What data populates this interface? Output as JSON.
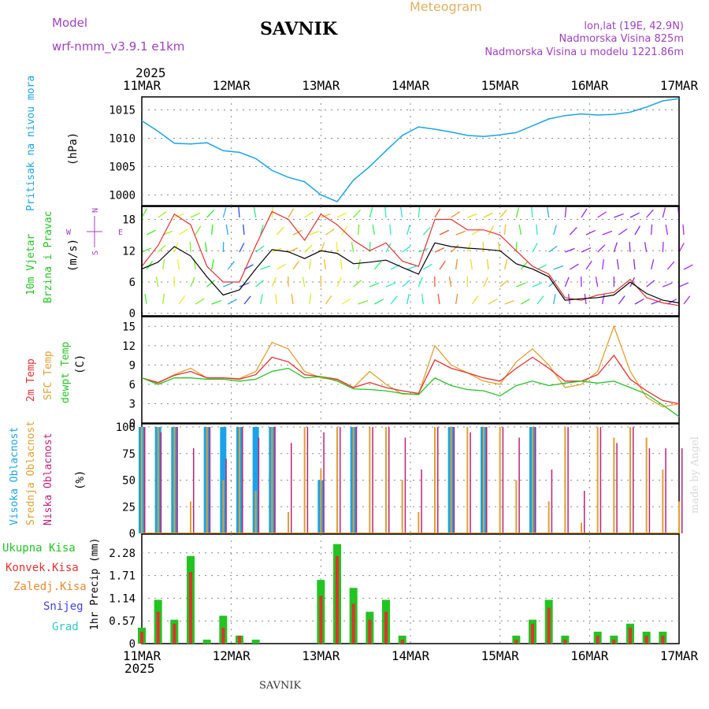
{
  "header": {
    "model_label": "Model",
    "model_name": "wrf-nmm_v3.9.1 e1km",
    "station": "SAVNIK",
    "product": "Meteogram",
    "coords": "lon,lat (19E, 42.9N)",
    "elevation": "Nadmorska Visina 825m",
    "model_elevation": "Nadmorska Visina u modelu 1221.86m"
  },
  "footer": {
    "station": "SAVNIK",
    "credit": "made by Angel"
  },
  "time_axis": {
    "year": "2025",
    "ticks": [
      "11MAR",
      "12MAR",
      "13MAR",
      "14MAR",
      "15MAR",
      "16MAR",
      "17MAR"
    ]
  },
  "colors": {
    "pressure": "#1aa3e8",
    "temp2m": "#e53030",
    "sfc_temp": "#e0a030",
    "dewpt": "#22c422",
    "cloud_high": "#1aa3e8",
    "cloud_mid": "#e0a030",
    "cloud_low": "#c2207a",
    "precip_total": "#22c422",
    "precip_conv": "#e53030",
    "wind_speed": "#000000",
    "wind_gust": "#e53030"
  },
  "panels": {
    "pressure": {
      "label": "Pritisak na nivou mora",
      "unit": "(hPa)",
      "ticks": [
        "1015",
        "1010",
        "1005",
        "1000"
      ]
    },
    "wind": {
      "label1": "10m Vjetar",
      "label2": "Brzina i Pravac",
      "unit": "(m/s)",
      "ticks": [
        "18",
        "12",
        "6",
        "0"
      ],
      "compass": {
        "n": "N",
        "s": "S",
        "e": "E",
        "w": "W"
      }
    },
    "temp": {
      "label1": "2m Temp",
      "label2": "SFC Temp",
      "label3": "dewpt Temp",
      "unit": "(C)",
      "ticks": [
        "15",
        "12",
        "9",
        "6",
        "3",
        "0"
      ]
    },
    "cloud": {
      "label1": "Visoka Oblacnost",
      "label2": "Srednja Oblacnost",
      "label3": "Niska Oblacnost",
      "unit": "(%)",
      "ticks": [
        "100",
        "75",
        "50",
        "25",
        "0"
      ]
    },
    "precip": {
      "unit": "1hr Precip (mm)",
      "ticks": [
        "2.28",
        "1.71",
        "1.14",
        "0.57",
        "0"
      ],
      "legend": [
        "Ukupna Kisa",
        "Konvek.Kisa",
        "Zaledj.Kisa",
        "Snijeg",
        "Grad"
      ]
    }
  },
  "chart_data": {
    "type": "line",
    "x_start": "2025-03-11 00:00",
    "x_end": "2025-03-17 00:00",
    "time_step_hours": 6,
    "pressure_hpa": [
      1013.1,
      1011.2,
      1009.1,
      1009.0,
      1009.2,
      1007.8,
      1007.5,
      1006.4,
      1004.3,
      1003.1,
      1002.3,
      1000.0,
      998.8,
      1002.6,
      1005.0,
      1007.8,
      1010.5,
      1012.0,
      1011.6,
      1011.1,
      1010.5,
      1010.3,
      1010.6,
      1011.0,
      1012.2,
      1013.4,
      1014.0,
      1014.3,
      1014.1,
      1014.2,
      1014.6,
      1015.5,
      1016.6,
      1017.0
    ],
    "wind_speed_ms": [
      8.5,
      9.8,
      12.8,
      11.0,
      7.0,
      3.5,
      4.5,
      8.5,
      12.2,
      11.8,
      10.5,
      12.0,
      11.5,
      9.5,
      9.8,
      10.2,
      8.8,
      7.5,
      13.5,
      12.8,
      12.5,
      12.3,
      12.0,
      9.5,
      8.5,
      7.0,
      2.5,
      2.8,
      3.0,
      3.5,
      6.0,
      3.8,
      2.5,
      2.0
    ],
    "wind_gust_ms": [
      9.0,
      13.0,
      19.0,
      17.0,
      9.0,
      6.0,
      6.0,
      13.0,
      19.5,
      18.0,
      14.0,
      19.0,
      17.0,
      14.0,
      12.0,
      13.5,
      10.0,
      9.0,
      18.0,
      18.0,
      16.0,
      16.0,
      15.0,
      12.0,
      9.0,
      7.5,
      3.0,
      2.5,
      3.5,
      4.0,
      6.5,
      3.0,
      2.0,
      1.5
    ],
    "temp2m_c": [
      7.0,
      6.3,
      7.4,
      8.0,
      7.0,
      7.0,
      6.8,
      7.5,
      10.2,
      9.5,
      7.5,
      7.2,
      6.8,
      5.5,
      6.3,
      5.5,
      5.0,
      4.6,
      9.8,
      8.5,
      7.8,
      7.0,
      6.5,
      8.5,
      10.2,
      8.5,
      6.5,
      6.5,
      7.5,
      10.5,
      6.8,
      5.0,
      3.5,
      3.0
    ],
    "sfc_temp_c": [
      7.0,
      6.2,
      7.5,
      8.5,
      7.0,
      7.0,
      6.9,
      8.0,
      12.5,
      11.5,
      8.0,
      7.0,
      6.7,
      5.5,
      8.0,
      6.0,
      4.5,
      4.5,
      12.0,
      9.0,
      7.8,
      6.5,
      6.0,
      9.5,
      11.5,
      9.0,
      5.5,
      6.0,
      8.0,
      15.0,
      8.0,
      4.0,
      2.5,
      3.0
    ],
    "dewpt_c": [
      7.0,
      6.0,
      7.0,
      7.0,
      6.8,
      6.8,
      6.5,
      6.8,
      8.0,
      8.5,
      7.0,
      7.2,
      6.5,
      5.3,
      5.2,
      5.0,
      4.6,
      4.4,
      7.0,
      5.8,
      5.2,
      5.0,
      4.2,
      5.8,
      6.5,
      5.8,
      6.2,
      6.5,
      6.2,
      6.5,
      5.5,
      4.5,
      2.8,
      1.0
    ],
    "cloud_low_pct": [
      100,
      95,
      100,
      80,
      100,
      70,
      100,
      90,
      100,
      85,
      100,
      95,
      100,
      100,
      100,
      100,
      90,
      60,
      100,
      100,
      95,
      100,
      100,
      90,
      100,
      60,
      100,
      40,
      100,
      85,
      100,
      80,
      80,
      80
    ],
    "cloud_mid_pct": [
      100,
      100,
      100,
      30,
      100,
      50,
      100,
      40,
      100,
      20,
      100,
      60,
      100,
      100,
      100,
      100,
      50,
      20,
      100,
      100,
      100,
      100,
      100,
      50,
      100,
      30,
      100,
      10,
      100,
      90,
      100,
      90,
      60,
      30
    ],
    "cloud_high_pct": [
      100,
      100,
      100,
      0,
      100,
      100,
      100,
      100,
      100,
      0,
      0,
      50,
      0,
      100,
      0,
      0,
      0,
      0,
      0,
      100,
      0,
      100,
      0,
      0,
      100,
      0,
      0,
      0,
      0,
      0,
      0,
      0,
      0,
      0
    ],
    "precip_total_mm": [
      0.4,
      1.1,
      0.6,
      2.2,
      0.1,
      0.7,
      0.2,
      0.1,
      0.0,
      0.0,
      0.0,
      1.6,
      2.5,
      1.4,
      0.8,
      1.1,
      0.2,
      0.0,
      0.0,
      0.0,
      0.0,
      0.0,
      0.0,
      0.2,
      0.6,
      1.1,
      0.2,
      0.0,
      0.3,
      0.2,
      0.5,
      0.3,
      0.3,
      0.0
    ],
    "precip_conv_mm": [
      0.3,
      0.8,
      0.5,
      1.8,
      0.0,
      0.4,
      0.2,
      0.0,
      0.0,
      0.0,
      0.0,
      1.2,
      2.2,
      1.0,
      0.6,
      0.8,
      0.1,
      0.0,
      0.0,
      0.0,
      0.0,
      0.0,
      0.0,
      0.1,
      0.5,
      0.9,
      0.1,
      0.0,
      0.2,
      0.1,
      0.4,
      0.2,
      0.2,
      0.0
    ]
  }
}
